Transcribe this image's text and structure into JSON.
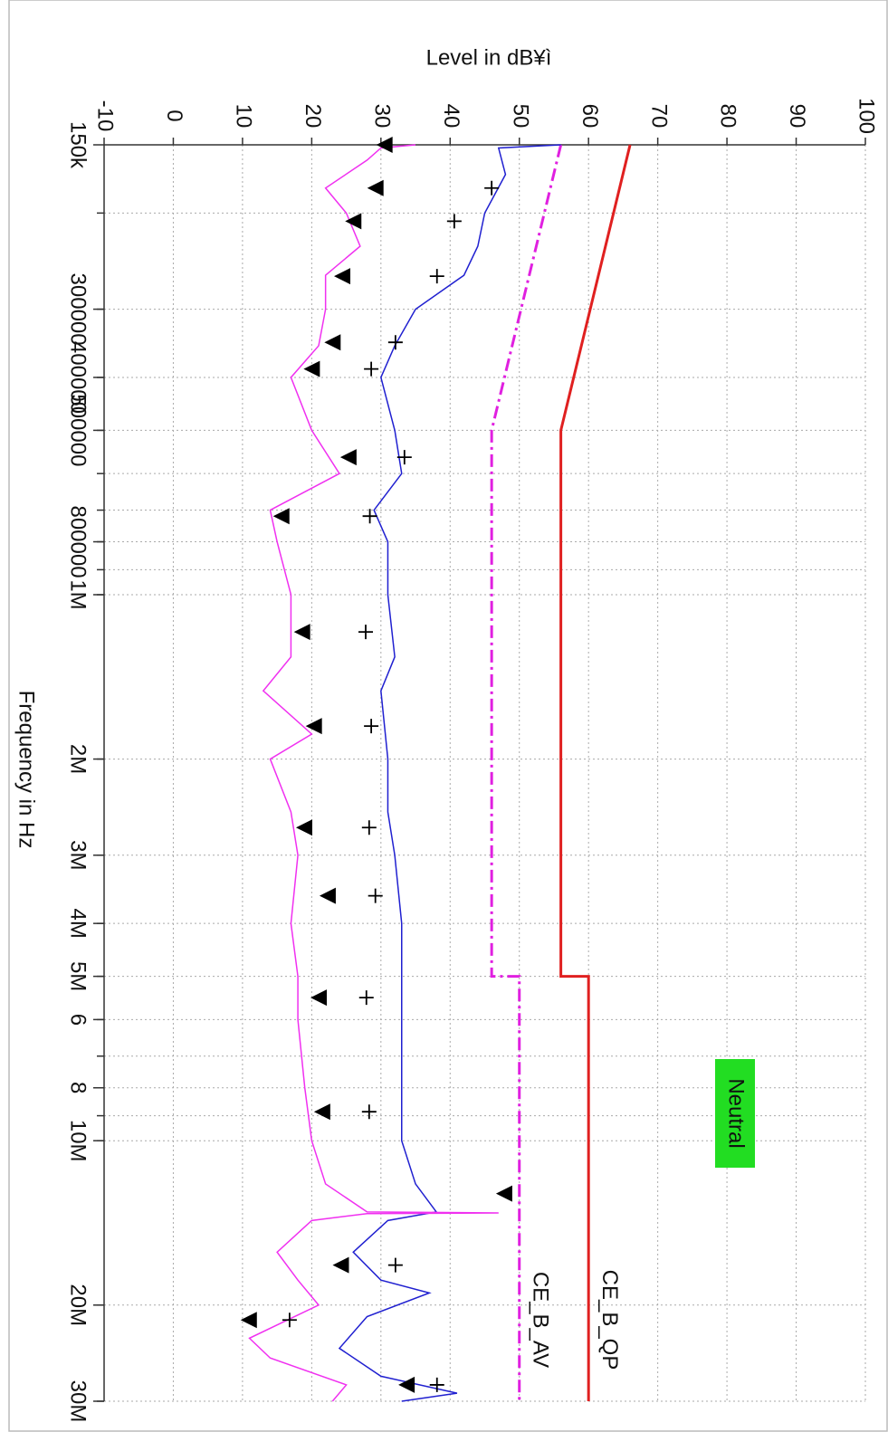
{
  "chart_data": {
    "type": "line",
    "ylabel": "Level in dB¥ì",
    "xlabel": "Frequency in Hz",
    "xscale": "log",
    "xlim": [
      150000,
      30000000
    ],
    "ylim": [
      -10,
      100
    ],
    "xticks": [
      {
        "value": 150000,
        "label": "150k"
      },
      300000,
      400000,
      500000,
      800000,
      {
        "value": 1000000,
        "label": "1M"
      },
      {
        "value": 2000000,
        "label": "2M"
      },
      {
        "value": 3000000,
        "label": "3M"
      },
      {
        "value": 4000000,
        "label": "4M"
      },
      {
        "value": 5000000,
        "label": "5M"
      },
      {
        "value": 6000000,
        "label": "6"
      },
      {
        "value": 8000000,
        "label": "8"
      },
      {
        "value": 10000000,
        "label": "10M"
      },
      {
        "value": 20000000,
        "label": "20M"
      },
      {
        "value": 30000000,
        "label": "30M"
      }
    ],
    "yticks": [
      -10,
      0,
      10,
      20,
      30,
      40,
      50,
      60,
      70,
      80,
      90,
      100
    ],
    "grid": true,
    "annotation": "Neutral",
    "series": [
      {
        "name": "CE_B_QP",
        "color": "#e02020",
        "style": "solid",
        "x": [
          150000,
          500000,
          5000000,
          5000000,
          30000000
        ],
        "values": [
          66,
          56,
          56,
          60,
          60
        ]
      },
      {
        "name": "CE_B_AV",
        "color": "#e020e0",
        "style": "dashdot",
        "x": [
          150000,
          500000,
          5000000,
          5000000,
          30000000
        ],
        "values": [
          56,
          46,
          46,
          50,
          50
        ]
      },
      {
        "color": "#2020d0",
        "style": "trace",
        "x": [
          150000,
          152000,
          170000,
          200000,
          230000,
          260000,
          300000,
          350000,
          400000,
          500000,
          600000,
          700000,
          800000,
          1000000,
          1300000,
          1500000,
          2000000,
          2500000,
          3000000,
          4000000,
          5000000,
          6000000,
          8000000,
          10000000,
          12000000,
          13500000,
          14000000,
          16000000,
          18000000,
          19000000,
          21000000,
          24000000,
          27000000,
          29000000,
          30000000
        ],
        "values": [
          56,
          47,
          48,
          45,
          44,
          42,
          35,
          32,
          30,
          32,
          33,
          29,
          31,
          31,
          32,
          30,
          31,
          31,
          32,
          33,
          33,
          33,
          33,
          33,
          35,
          38,
          31,
          26,
          30,
          37,
          28,
          24,
          30,
          41,
          33
        ]
      },
      {
        "color": "#f030f0",
        "style": "trace",
        "x": [
          150000,
          152000,
          160000,
          180000,
          200000,
          230000,
          260000,
          300000,
          350000,
          400000,
          500000,
          600000,
          700000,
          800000,
          1000000,
          1300000,
          1500000,
          1800000,
          2000000,
          2500000,
          3000000,
          4000000,
          5000000,
          6000000,
          8000000,
          10000000,
          12000000,
          13500000,
          13560000,
          13600000,
          14000000,
          16000000,
          18000000,
          20000000,
          23000000,
          25000000,
          28000000,
          30000000
        ],
        "values": [
          35,
          30,
          28,
          22,
          25,
          27,
          22,
          22,
          21,
          17,
          20,
          24,
          14,
          15,
          17,
          17,
          13,
          20,
          14,
          17,
          18,
          17,
          18,
          18,
          19,
          20,
          22,
          28,
          47,
          28,
          20,
          15,
          18,
          21,
          11,
          14,
          25,
          23
        ]
      },
      {
        "color": "#000000",
        "style": "triangle",
        "x": [
          150000,
          180000,
          207000,
          261000,
          345000,
          386000,
          560000,
          718000,
          1170000,
          1740000,
          2670000,
          3560000,
          5470000,
          8850000,
          12500000,
          16900000,
          21300000,
          28000000
        ],
        "values": [
          30.5,
          29.2,
          26,
          24.4,
          23,
          20,
          25.3,
          15.6,
          18.6,
          20.3,
          18.9,
          22.3,
          21,
          21.5,
          47.8,
          24.2,
          10.9,
          33.7
        ]
      },
      {
        "color": "#000000",
        "style": "cross",
        "x": [
          180000,
          207000,
          261000,
          345000,
          386000,
          560000,
          718000,
          1170000,
          1740000,
          2670000,
          3560000,
          5470000,
          8850000,
          16900000,
          21300000,
          28000000
        ],
        "values": [
          46,
          40.6,
          38.1,
          32.1,
          28.6,
          33.4,
          28.4,
          27.8,
          28.6,
          28.3,
          29.2,
          27.9,
          28.3,
          32.1,
          16.8,
          38.1
        ]
      }
    ]
  }
}
